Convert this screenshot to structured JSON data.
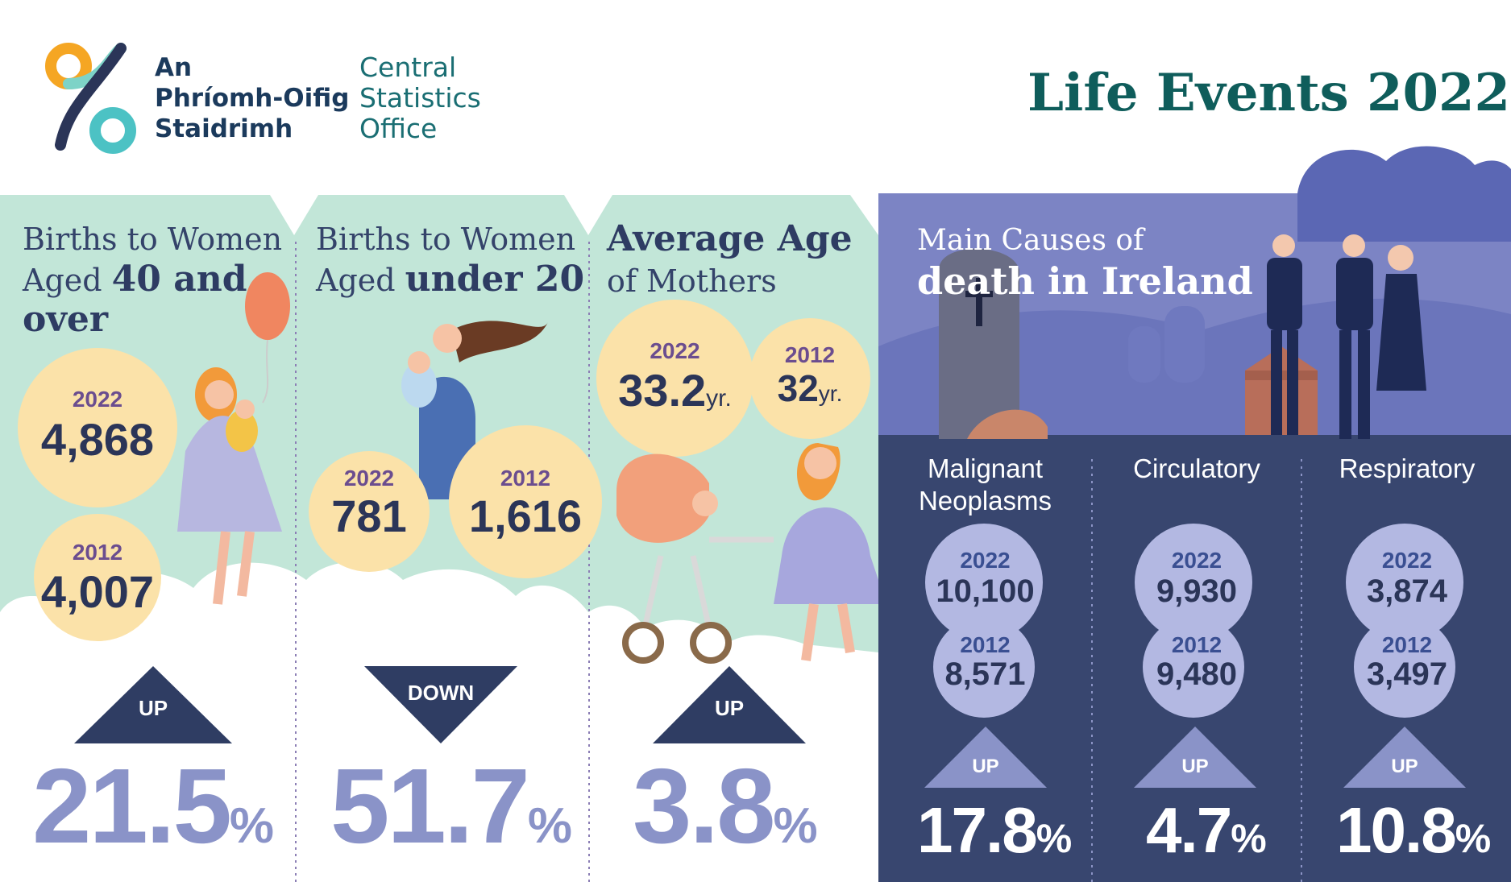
{
  "header": {
    "logo_irish": [
      "An",
      "Phríomh-Oifig",
      "Staidrimh"
    ],
    "logo_english": [
      "Central",
      "Statistics",
      "Office"
    ],
    "title": "Life Events 2022"
  },
  "panels": [
    {
      "title_line1": "Births to Women",
      "title_line2_prefix": "Aged ",
      "title_line2_bold": "40 and",
      "title_line3_bold": "over",
      "year_a": "2022",
      "value_a": "4,868",
      "year_b": "2012",
      "value_b": "4,007",
      "direction": "UP",
      "change_value": "21.5",
      "change_unit": "%"
    },
    {
      "title_line1": "Births to Women",
      "title_line2_prefix": "Aged ",
      "title_line2_bold": "under 20",
      "year_a": "2022",
      "value_a": "781",
      "year_b": "2012",
      "value_b": "1,616",
      "direction": "DOWN",
      "change_value": "51.7",
      "change_unit": "%"
    },
    {
      "title_line1_bold": "Average Age",
      "title_line2": "of Mothers",
      "year_a": "2022",
      "value_a": "33.2",
      "unit_a": "yr.",
      "year_b": "2012",
      "value_b": "32",
      "unit_b": "yr.",
      "direction": "UP",
      "change_value": "3.8",
      "change_unit": "%"
    }
  ],
  "deaths": {
    "title_line1": "Main Causes of",
    "title_line2": "death in Ireland",
    "causes": [
      {
        "label_line1": "Malignant",
        "label_line2": "Neoplasms",
        "year_a": "2022",
        "value_a": "10,100",
        "year_b": "2012",
        "value_b": "8,571",
        "direction": "UP",
        "change_value": "17.8",
        "change_unit": "%"
      },
      {
        "label_line1": "Circulatory",
        "label_line2": "",
        "year_a": "2022",
        "value_a": "9,930",
        "year_b": "2012",
        "value_b": "9,480",
        "direction": "UP",
        "change_value": "4.7",
        "change_unit": "%"
      },
      {
        "label_line1": "Respiratory",
        "label_line2": "",
        "year_a": "2022",
        "value_a": "3,874",
        "year_b": "2012",
        "value_b": "3,497",
        "direction": "UP",
        "change_value": "10.8",
        "change_unit": "%"
      }
    ]
  },
  "colors": {
    "mint": "#c2e6d8",
    "cream_bubble": "#fbe2a9",
    "navy": "#2f3d63",
    "periwinkle": "#8a93c8",
    "death_bg_top": "#7c84c4",
    "death_bg_bottom": "#38466f",
    "logo_teal": "#0f5d5b"
  }
}
